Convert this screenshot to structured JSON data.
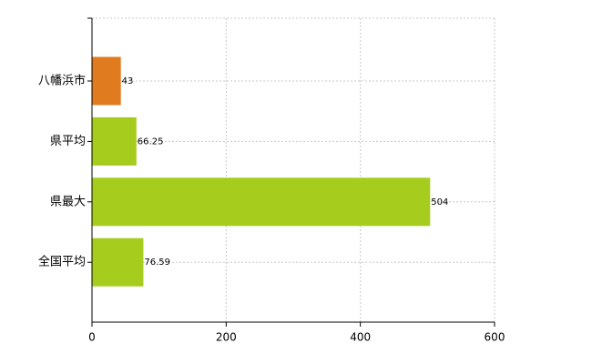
{
  "chart_data": {
    "type": "bar",
    "orientation": "horizontal",
    "categories": [
      "八幡浜市",
      "県平均",
      "県最大",
      "全国平均"
    ],
    "values": [
      43,
      66.25,
      504,
      76.59
    ],
    "colors": [
      "#e07b20",
      "#a6cc1e",
      "#a6cc1e",
      "#a6cc1e"
    ],
    "xlim": [
      0,
      600
    ],
    "xticks": [
      0,
      200,
      400,
      600
    ],
    "grid": true
  }
}
